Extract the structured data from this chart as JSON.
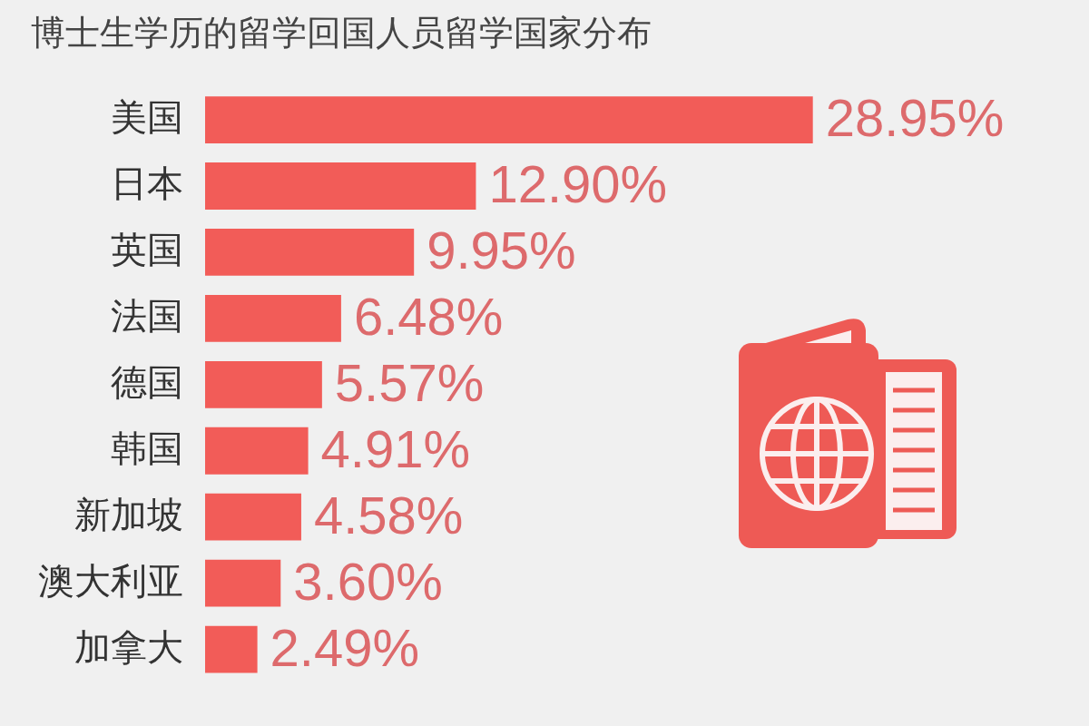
{
  "chart_data": {
    "type": "bar",
    "orientation": "horizontal",
    "title": "博士生学历的留学回国人员留学国家分布",
    "categories": [
      "美国",
      "日本",
      "英国",
      "法国",
      "德国",
      "韩国",
      "新加坡",
      "澳大利亚",
      "加拿大"
    ],
    "values": [
      28.95,
      12.9,
      9.95,
      6.48,
      5.57,
      4.91,
      4.58,
      3.6,
      2.49
    ],
    "value_labels": [
      "28.95%",
      "12.90%",
      "9.95%",
      "6.48%",
      "5.57%",
      "4.91%",
      "4.58%",
      "3.60%",
      "2.49%"
    ],
    "color": "#f25c58",
    "tick_labels": "y"
  }
}
